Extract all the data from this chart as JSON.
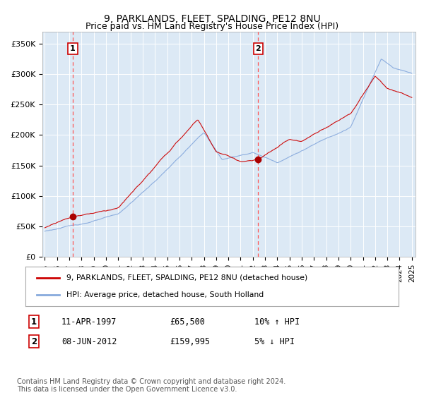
{
  "title": "9, PARKLANDS, FLEET, SPALDING, PE12 8NU",
  "subtitle": "Price paid vs. HM Land Registry's House Price Index (HPI)",
  "title_fontsize": 10,
  "ylim": [
    0,
    370000
  ],
  "yticks": [
    0,
    50000,
    100000,
    150000,
    200000,
    250000,
    300000,
    350000
  ],
  "ytick_labels": [
    "£0",
    "£50K",
    "£100K",
    "£150K",
    "£200K",
    "£250K",
    "£300K",
    "£350K"
  ],
  "xlim_start": 1994.8,
  "xlim_end": 2025.3,
  "plot_bg_color": "#dce9f5",
  "sale1_date": 1997.28,
  "sale1_price": 65500,
  "sale2_date": 2012.44,
  "sale2_price": 159995,
  "red_line_color": "#cc0000",
  "blue_line_color": "#88aadd",
  "vline_color": "#ff5555",
  "marker_color": "#aa0000",
  "legend_label_red": "9, PARKLANDS, FLEET, SPALDING, PE12 8NU (detached house)",
  "legend_label_blue": "HPI: Average price, detached house, South Holland",
  "table_row1": [
    "1",
    "11-APR-1997",
    "£65,500",
    "10% ↑ HPI"
  ],
  "table_row2": [
    "2",
    "08-JUN-2012",
    "£159,995",
    "5% ↓ HPI"
  ],
  "footnote": "Contains HM Land Registry data © Crown copyright and database right 2024.\nThis data is licensed under the Open Government Licence v3.0.",
  "footnote_fontsize": 7.0
}
